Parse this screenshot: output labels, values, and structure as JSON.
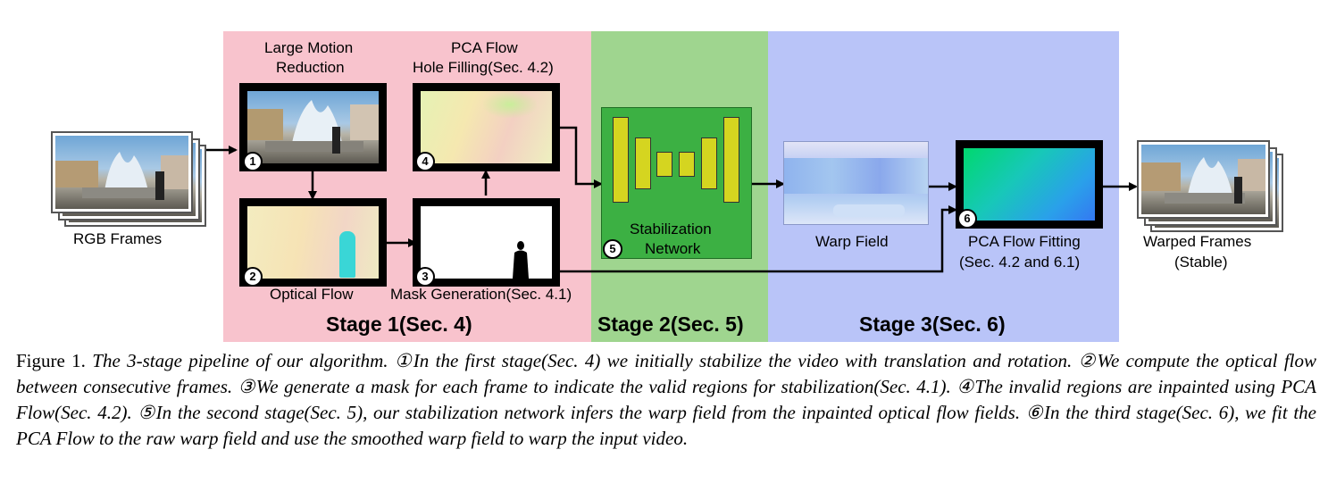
{
  "stages": [
    {
      "title": "Stage 1(Sec. 4)",
      "color": "#f8c3cd"
    },
    {
      "title": "Stage 2(Sec. 5)",
      "color": "#9fd58f"
    },
    {
      "title": "Stage 3(Sec. 6)",
      "color": "#b9c4f8"
    }
  ],
  "labels": {
    "rgb_frames": "RGB Frames",
    "large_motion_line1": "Large Motion",
    "large_motion_line2": "Reduction",
    "pca_hole_line1": "PCA Flow",
    "pca_hole_line2": "Hole Filling(Sec. 4.2)",
    "optical_flow": "Optical Flow",
    "mask_generation": "Mask Generation(Sec. 4.1)",
    "stab_net_line1": "Stabilization",
    "stab_net_line2": "Network",
    "warp_field": "Warp Field",
    "pca_fit_line1": "PCA Flow Fitting",
    "pca_fit_line2": "(Sec. 4.2 and 6.1)",
    "warped_line1": "Warped Frames",
    "warped_line2": "(Stable)"
  },
  "badges": [
    "1",
    "2",
    "3",
    "4",
    "5",
    "6"
  ],
  "caption": {
    "lead": "Figure 1.",
    "body": "The 3-stage pipeline of our algorithm. ①In the first stage(Sec. 4) we initially stabilize the video with translation and rotation. ②We compute the optical flow between consecutive frames. ③We generate a mask for each frame to indicate the valid regions for stabilization(Sec. 4.1). ④The invalid regions are inpainted using PCA Flow(Sec. 4.2). ⑤In the second stage(Sec. 5), our stabilization network infers the warp field from the inpainted optical flow fields. ⑥In the third stage(Sec. 6), we fit the PCA Flow to the raw warp field and use the smoothed warp field to warp the input video."
  },
  "colors": {
    "network_box": "#3cb043",
    "network_bars": "#d5d520",
    "arrow": "#000000"
  }
}
